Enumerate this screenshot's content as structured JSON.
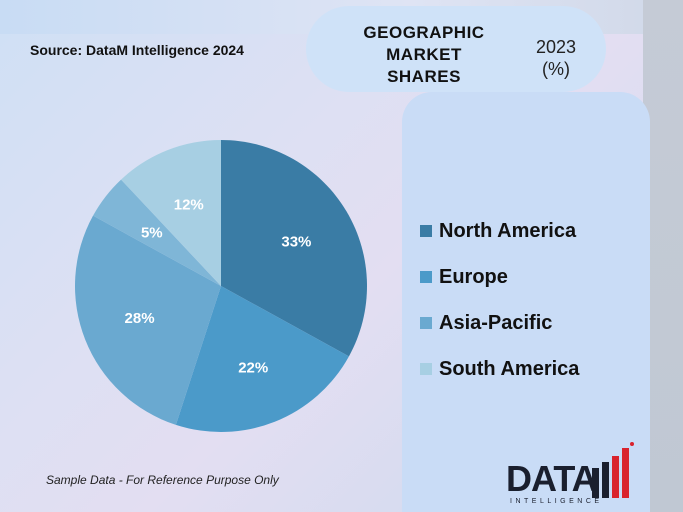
{
  "header": {
    "source": "Source: DataM Intelligence 2024",
    "title_lines": [
      "GEOGRAPHIC",
      "MARKET",
      "SHARES"
    ],
    "year_lines": [
      "2023",
      "(%)"
    ]
  },
  "footer": {
    "note": "Sample Data - For Reference Purpose Only",
    "logo_text": "DATA",
    "logo_sub": "INTELLIGENCE"
  },
  "colors": {
    "north_america": "#3a7ca5",
    "europe": "#4b9ac9",
    "asia_pacific": "#6aa9d0",
    "south_america": "#a7cfe3"
  },
  "chart_data": {
    "type": "pie",
    "title": "GEOGRAPHIC MARKET SHARES",
    "categories": [
      "North America",
      "Europe",
      "Asia-Pacific",
      "South America"
    ],
    "slices": [
      {
        "label": "North America",
        "value": 33,
        "display": "33%",
        "color": "#3a7ca5"
      },
      {
        "label": "Europe",
        "value": 22,
        "display": "22%",
        "color": "#4b9ac9"
      },
      {
        "label": "Asia-Pacific",
        "value": 28,
        "display": "28%",
        "color": "#6aa9d0"
      },
      {
        "label": "",
        "value": 5,
        "display": "5%",
        "color": "#7fb6d7"
      },
      {
        "label": "South America",
        "value": 12,
        "display": "12%",
        "color": "#a7cfe3"
      }
    ],
    "legend": [
      {
        "label": "North America",
        "color": "#3a7ca5"
      },
      {
        "label": "Europe",
        "color": "#4b9ac9"
      },
      {
        "label": "Asia-Pacific",
        "color": "#6aa9d0"
      },
      {
        "label": "South America",
        "color": "#a7cfe3"
      }
    ],
    "legend_position": "right"
  }
}
